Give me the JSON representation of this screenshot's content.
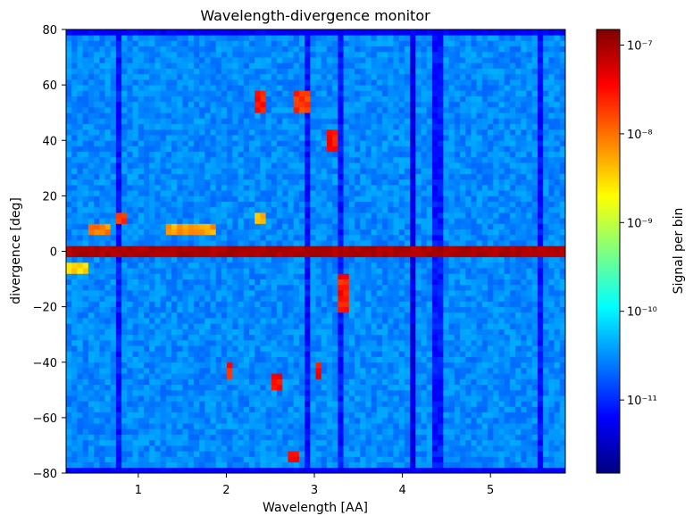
{
  "chart_data": {
    "type": "heatmap",
    "title": "Wavelength-divergence monitor",
    "xlabel": "Wavelength [AA]",
    "ylabel": "divergence [deg]",
    "xlim": [
      0.18,
      5.85
    ],
    "ylim": [
      -80,
      80
    ],
    "x_ticks": [
      1,
      2,
      3,
      4,
      5
    ],
    "y_ticks": [
      -80,
      -60,
      -40,
      -20,
      0,
      20,
      40,
      60,
      80
    ],
    "grid": false,
    "colorscale": "jet",
    "colorbar": {
      "label": "Signal per bin",
      "scale": "log",
      "range": [
        1.5e-12,
        1.5e-07
      ],
      "ticks": [
        {
          "value": 1e-11,
          "label": "10⁻¹¹"
        },
        {
          "value": 1e-10,
          "label": "10⁻¹⁰"
        },
        {
          "value": 1e-09,
          "label": "10⁻⁹"
        },
        {
          "value": 1e-08,
          "label": "10⁻⁸"
        },
        {
          "value": 1e-07,
          "label": "10⁻⁷"
        }
      ]
    },
    "background_level": 3e-11,
    "features": [
      {
        "kind": "band",
        "x": [
          0.18,
          5.85
        ],
        "y": [
          -2,
          2
        ],
        "value": 9e-08
      },
      {
        "kind": "band",
        "x": [
          0.18,
          5.85
        ],
        "y": [
          78,
          80
        ],
        "value": 6e-12
      },
      {
        "kind": "band",
        "x": [
          0.18,
          5.85
        ],
        "y": [
          -80,
          -78
        ],
        "value": 6e-12
      },
      {
        "kind": "column",
        "x": 0.8,
        "value": 8e-12
      },
      {
        "kind": "column",
        "x": 2.93,
        "value": 8e-12
      },
      {
        "kind": "column",
        "x": 3.3,
        "value": 8e-12
      },
      {
        "kind": "column",
        "x": 4.1,
        "value": 5e-12
      },
      {
        "kind": "column",
        "x": 4.4,
        "value": 8e-12
      },
      {
        "kind": "column",
        "x": 5.55,
        "value": 8e-12
      },
      {
        "kind": "blob",
        "x": [
          2.35,
          2.45
        ],
        "y": [
          51,
          57
        ],
        "value": 3e-08
      },
      {
        "kind": "blob",
        "x": [
          2.75,
          2.95
        ],
        "y": [
          51,
          57
        ],
        "value": 2e-08
      },
      {
        "kind": "blob",
        "x": [
          3.15,
          3.28
        ],
        "y": [
          37,
          43
        ],
        "value": 3e-08
      },
      {
        "kind": "blob",
        "x": [
          0.18,
          0.45
        ],
        "y": [
          -8,
          -4
        ],
        "value": 3e-09
      },
      {
        "kind": "blob",
        "x": [
          0.45,
          0.7
        ],
        "y": [
          6,
          10
        ],
        "value": 8e-09
      },
      {
        "kind": "blob",
        "x": [
          0.75,
          0.9
        ],
        "y": [
          10,
          14
        ],
        "value": 2e-08
      },
      {
        "kind": "blob",
        "x": [
          1.3,
          1.9
        ],
        "y": [
          6,
          10
        ],
        "value": 6e-09
      },
      {
        "kind": "blob",
        "x": [
          2.35,
          2.45
        ],
        "y": [
          10,
          14
        ],
        "value": 4e-09
      },
      {
        "kind": "blob",
        "x": [
          3.25,
          3.38
        ],
        "y": [
          -22,
          -8
        ],
        "value": 3e-08
      },
      {
        "kind": "blob",
        "x": [
          2.0,
          2.1
        ],
        "y": [
          -45,
          -41
        ],
        "value": 3e-08
      },
      {
        "kind": "blob",
        "x": [
          2.52,
          2.65
        ],
        "y": [
          -49,
          -45
        ],
        "value": 3e-08
      },
      {
        "kind": "blob",
        "x": [
          3.0,
          3.1
        ],
        "y": [
          -45,
          -41
        ],
        "value": 3e-08
      },
      {
        "kind": "blob",
        "x": [
          2.7,
          2.8
        ],
        "y": [
          -76,
          -72
        ],
        "value": 3e-08
      }
    ]
  }
}
